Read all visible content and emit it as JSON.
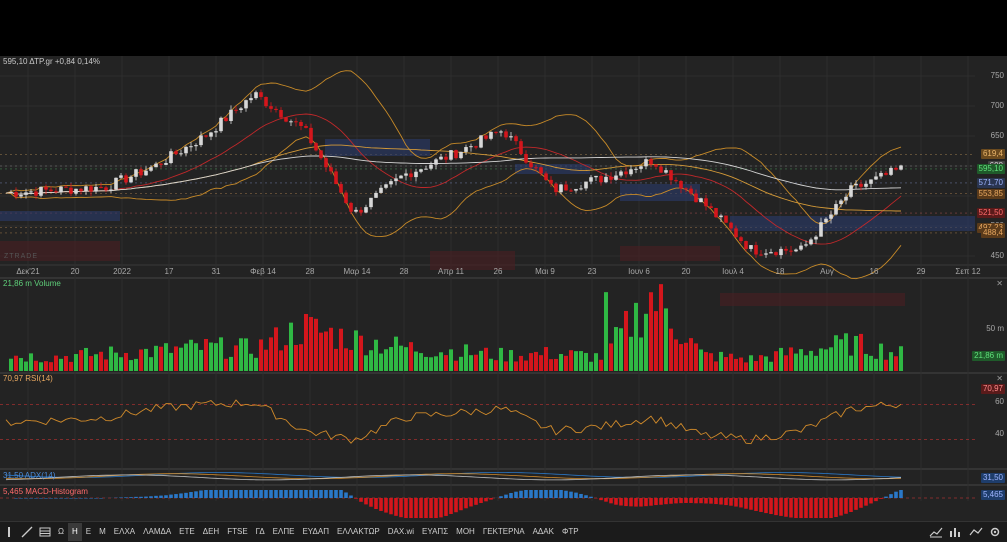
{
  "window": {
    "title": "ΔΤΡ.gr"
  },
  "main_header": {
    "text": "595,10 ΔΤΡ.gr +0,84 0,14%",
    "color": "#3fbf3f"
  },
  "watermark": "ZTRADE",
  "price_axis": {
    "ticks": [
      "750",
      "700",
      "650",
      "600",
      "550",
      "500",
      "450"
    ],
    "boxes": [
      {
        "label": "619,4",
        "bg": "#6b4a1e",
        "fg": "#e8b46a"
      },
      {
        "label": "600",
        "bg": "#444",
        "fg": "#ddd"
      },
      {
        "label": "595,10",
        "bg": "#1f5a2a",
        "fg": "#5fe07a"
      },
      {
        "label": "571,70",
        "bg": "#2a3550",
        "fg": "#9db4ff"
      },
      {
        "label": "553,85",
        "bg": "#5a3a1a",
        "fg": "#e8a860"
      },
      {
        "label": "521,50",
        "bg": "#5a1a1a",
        "fg": "#ff6b6b"
      },
      {
        "label": "497,23",
        "bg": "#5a3a1a",
        "fg": "#e8a860"
      },
      {
        "label": "488,4",
        "bg": "#5a3a1a",
        "fg": "#e8a860"
      }
    ]
  },
  "time_axis": [
    "Δεκ'21",
    "20",
    "2022",
    "17",
    "31",
    "Φεβ 14",
    "28",
    "Μαρ 14",
    "28",
    "Απρ 11",
    "26",
    "Μαι 9",
    "23",
    "Ιουν 6",
    "20",
    "Ιουλ 4",
    "18",
    "Αυγ",
    "16",
    "29",
    "Σεπ 12"
  ],
  "volume_panel": {
    "header": "21,86 m Volume",
    "tick": "50 m",
    "box": "21,86 m"
  },
  "rsi_panel": {
    "header": "70,97 RSI(14)",
    "ticks": [
      "60",
      "40"
    ],
    "box": "70,97"
  },
  "adx_panel": {
    "header": "31,50 ADX(14)",
    "box": "31,50"
  },
  "macd_panel": {
    "header": "5,465 MACD-Histogram",
    "box": "5,465"
  },
  "toolbar": {
    "items": [
      "Ω",
      "Η",
      "Ε",
      "Μ",
      "ΕΛΧΑ",
      "ΛΑΜΔΑ",
      "ΕΤΕ",
      "ΔΕΗ",
      "FTSE",
      "ΓΔ",
      "ΕΛΠΕ",
      "ΕΥΔΑΠ",
      "ΕΛΛΑΚΤΩΡ",
      "DAX.wi",
      "ΕΥΑΠΣ",
      "ΜΟΗ",
      "ΓΕΚΤΕΡΝΑ",
      "ΑΔΑΚ",
      "ΦΤΡ"
    ],
    "active": "Η"
  },
  "colors": {
    "up": "#2fb844",
    "down": "#d4161c",
    "candle_up": "#d8d8d8",
    "candle_down": "#d4161c",
    "bb": "#c78a28",
    "sma": "#d4d4d4",
    "ema": "#c0282a",
    "macd_pos": "#2a78c8",
    "macd_neg": "#d4161c"
  },
  "chart_data": {
    "type": "line",
    "title": "ΔΤΡ.gr",
    "x": [
      "Δεκ'21",
      "20",
      "2022",
      "17",
      "31",
      "Φεβ 14",
      "28",
      "Μαρ 14",
      "28",
      "Απρ 11",
      "26",
      "Μαι 9",
      "23",
      "Ιουν 6",
      "20",
      "Ιουλ 4",
      "18",
      "Αυγ",
      "16"
    ],
    "series": [
      {
        "name": "ΔΤΡ.gr",
        "values": [
          555,
          560,
          565,
          600,
          650,
          720,
          660,
          520,
          585,
          620,
          660,
          560,
          580,
          610,
          540,
          460,
          460,
          560,
          595
        ]
      }
    ],
    "ylim": [
      440,
      770
    ],
    "volume_m": [
      20,
      18,
      22,
      25,
      30,
      28,
      55,
      40,
      30,
      25,
      20,
      22,
      18,
      95,
      20,
      15,
      25,
      35,
      22
    ],
    "rsi": [
      50,
      52,
      55,
      65,
      70,
      72,
      40,
      30,
      55,
      60,
      65,
      40,
      45,
      55,
      35,
      30,
      40,
      65,
      71
    ]
  }
}
